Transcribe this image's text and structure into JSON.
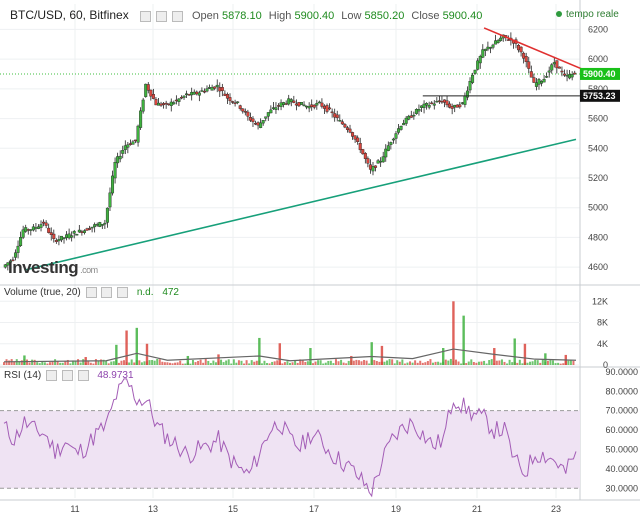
{
  "header": {
    "symbol": "BTC/USD, 60, Bitfinex",
    "open_label": "Open",
    "open_value": "5878.10",
    "high_label": "High",
    "high_value": "5900.40",
    "low_label": "Low",
    "low_value": "5850.20",
    "close_label": "Close",
    "close_value": "5900.40",
    "realtime_label": "tempo reale"
  },
  "logo": "Investing",
  "logo_sub": ".com",
  "volume_panel": {
    "title": "Volume (true, 20)",
    "nd_label": "n.d.",
    "value": "472"
  },
  "rsi_panel": {
    "title": "RSI (14)",
    "value": "48.9731"
  },
  "colors": {
    "up": "#3fb13f",
    "down": "#d9463e",
    "trendline": "#17a07a",
    "resistance": "#e03030",
    "rsi_line": "#a35db6",
    "rsi_band": "#efe3f3",
    "current_price_bg": "#19c019"
  },
  "chart_data": [
    {
      "type": "candlestick",
      "x_ticks": [
        "11",
        "13",
        "15",
        "17",
        "19",
        "21",
        "23"
      ],
      "y_ticks": [
        4600,
        4800,
        5000,
        5200,
        5400,
        5600,
        5800,
        6000,
        6200
      ],
      "ylim": [
        4500,
        6250
      ],
      "price_path": [
        [
          0,
          4600
        ],
        [
          1,
          4660
        ],
        [
          2,
          4850
        ],
        [
          3,
          4860
        ],
        [
          4,
          4900
        ],
        [
          5,
          4780
        ],
        [
          6,
          4800
        ],
        [
          7,
          4830
        ],
        [
          8,
          4850
        ],
        [
          9,
          4880
        ],
        [
          10,
          4900
        ],
        [
          11,
          5300
        ],
        [
          12,
          5420
        ],
        [
          13,
          5450
        ],
        [
          14,
          5830
        ],
        [
          15,
          5700
        ],
        [
          16,
          5690
        ],
        [
          17,
          5720
        ],
        [
          18,
          5760
        ],
        [
          19,
          5770
        ],
        [
          20,
          5800
        ],
        [
          21,
          5820
        ],
        [
          22,
          5740
        ],
        [
          23,
          5700
        ],
        [
          24,
          5610
        ],
        [
          25,
          5550
        ],
        [
          26,
          5640
        ],
        [
          27,
          5690
        ],
        [
          28,
          5720
        ],
        [
          29,
          5700
        ],
        [
          30,
          5680
        ],
        [
          31,
          5700
        ],
        [
          32,
          5650
        ],
        [
          33,
          5580
        ],
        [
          34,
          5520
        ],
        [
          35,
          5400
        ],
        [
          36,
          5250
        ],
        [
          37,
          5320
        ],
        [
          38,
          5450
        ],
        [
          39,
          5560
        ],
        [
          40,
          5620
        ],
        [
          41,
          5680
        ],
        [
          42,
          5700
        ],
        [
          43,
          5720
        ],
        [
          44,
          5670
        ],
        [
          45,
          5700
        ],
        [
          46,
          5900
        ],
        [
          47,
          6050
        ],
        [
          48,
          6100
        ],
        [
          49,
          6150
        ],
        [
          50,
          6120
        ],
        [
          51,
          6020
        ],
        [
          52,
          5830
        ],
        [
          53,
          5870
        ],
        [
          54,
          5980
        ],
        [
          55,
          5880
        ],
        [
          56,
          5900
        ]
      ],
      "current_price": "5900.40",
      "level_price": "5753.23",
      "support_trendline": [
        [
          2,
          4580
        ],
        [
          56,
          5460
        ]
      ],
      "resistance_trendline": [
        [
          47,
          6210
        ],
        [
          56,
          5950
        ]
      ],
      "horizontal_level": 5753
    },
    {
      "type": "bar",
      "title": "Volume (true, 20)",
      "y_ticks": [
        "12K",
        "8K",
        "4K",
        "0"
      ],
      "ylim": [
        0,
        13000
      ],
      "spikes": [
        [
          2,
          1800
        ],
        [
          8,
          1500
        ],
        [
          11,
          3800
        ],
        [
          12,
          6500
        ],
        [
          13,
          7000
        ],
        [
          14,
          4000
        ],
        [
          18,
          1700
        ],
        [
          21,
          2000
        ],
        [
          25,
          5100
        ],
        [
          27,
          4100
        ],
        [
          30,
          3200
        ],
        [
          34,
          1700
        ],
        [
          36,
          4300
        ],
        [
          37,
          3600
        ],
        [
          43,
          3200
        ],
        [
          44,
          12000
        ],
        [
          45,
          9300
        ],
        [
          48,
          3200
        ],
        [
          50,
          5000
        ],
        [
          51,
          4000
        ],
        [
          53,
          2200
        ],
        [
          55,
          1900
        ]
      ],
      "ma_path": [
        [
          0,
          600
        ],
        [
          10,
          800
        ],
        [
          13,
          2200
        ],
        [
          16,
          900
        ],
        [
          25,
          1700
        ],
        [
          28,
          800
        ],
        [
          36,
          1600
        ],
        [
          40,
          1200
        ],
        [
          44,
          3000
        ],
        [
          48,
          2000
        ],
        [
          52,
          1100
        ],
        [
          56,
          900
        ]
      ]
    },
    {
      "type": "line",
      "title": "RSI (14)",
      "y_ticks": [
        "90.0000",
        "80.0000",
        "70.0000",
        "60.0000",
        "50.0000",
        "40.0000",
        "30.0000"
      ],
      "ylim": [
        25,
        92
      ],
      "band": [
        30,
        70
      ],
      "rsi_path": [
        [
          0,
          62
        ],
        [
          1,
          55
        ],
        [
          2,
          64
        ],
        [
          3,
          60
        ],
        [
          4,
          58
        ],
        [
          5,
          49
        ],
        [
          6,
          54
        ],
        [
          7,
          48
        ],
        [
          8,
          51
        ],
        [
          9,
          58
        ],
        [
          10,
          62
        ],
        [
          11,
          78
        ],
        [
          12,
          85
        ],
        [
          13,
          76
        ],
        [
          14,
          75
        ],
        [
          15,
          62
        ],
        [
          16,
          56
        ],
        [
          17,
          52
        ],
        [
          18,
          47
        ],
        [
          19,
          50
        ],
        [
          20,
          52
        ],
        [
          21,
          55
        ],
        [
          22,
          46
        ],
        [
          23,
          40
        ],
        [
          24,
          37
        ],
        [
          25,
          48
        ],
        [
          26,
          60
        ],
        [
          27,
          64
        ],
        [
          28,
          55
        ],
        [
          29,
          51
        ],
        [
          30,
          58
        ],
        [
          31,
          55
        ],
        [
          32,
          48
        ],
        [
          33,
          44
        ],
        [
          34,
          40
        ],
        [
          35,
          34
        ],
        [
          36,
          28
        ],
        [
          37,
          44
        ],
        [
          38,
          55
        ],
        [
          39,
          61
        ],
        [
          40,
          64
        ],
        [
          41,
          58
        ],
        [
          42,
          52
        ],
        [
          43,
          55
        ],
        [
          44,
          77
        ],
        [
          45,
          72
        ],
        [
          46,
          68
        ],
        [
          47,
          66
        ],
        [
          48,
          60
        ],
        [
          49,
          60
        ],
        [
          50,
          44
        ],
        [
          51,
          38
        ],
        [
          52,
          48
        ],
        [
          53,
          47
        ],
        [
          54,
          44
        ],
        [
          55,
          38
        ],
        [
          56,
          49
        ]
      ]
    }
  ]
}
